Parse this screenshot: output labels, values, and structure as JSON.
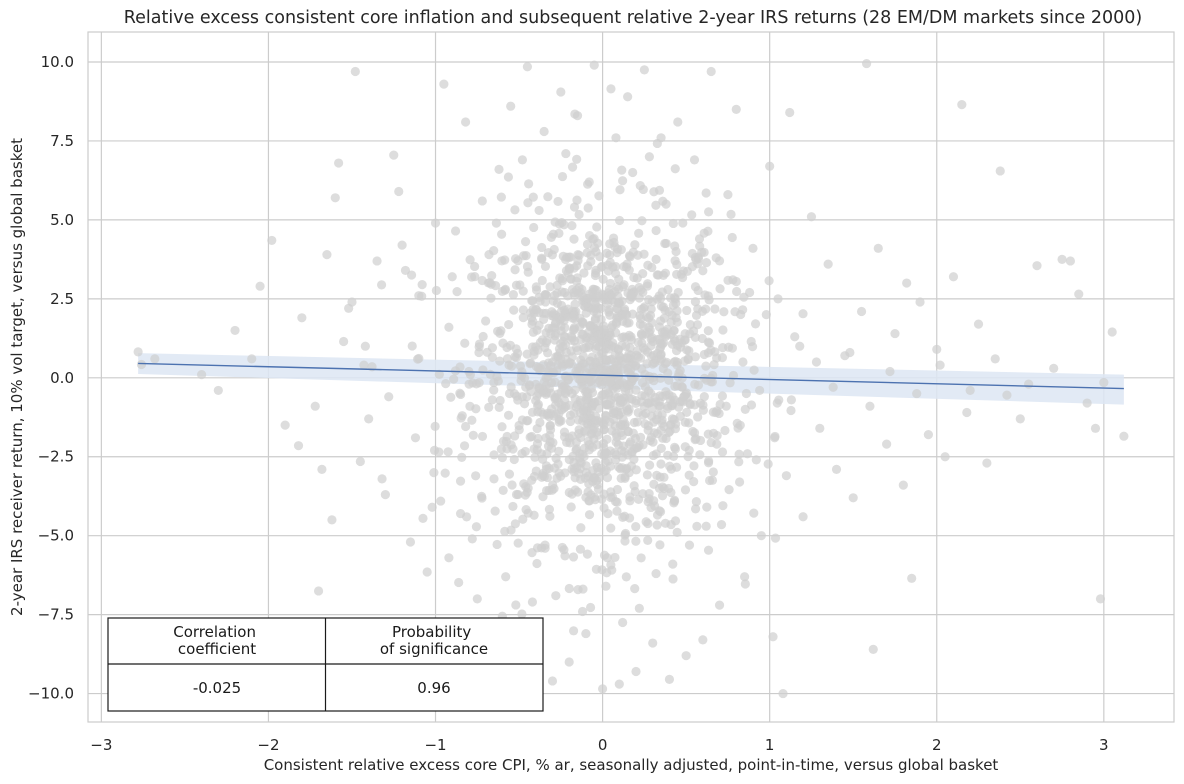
{
  "chart_data": {
    "type": "scatter",
    "title": "Relative excess consistent core inflation and subsequent relative 2-year IRS returns (28 EM/DM markets since 2000)",
    "xlabel": "Consistent relative excess core CPI, % ar, seasonally adjusted, point-in-time, versus global basket",
    "ylabel": "2-year IRS receiver return, 10% vol target, versus global basket",
    "xlim": [
      -3.08,
      3.42
    ],
    "ylim": [
      -10.9,
      10.95
    ],
    "x_ticks": [
      -3,
      -2,
      -1,
      0,
      1,
      2,
      3
    ],
    "x_tick_labels": [
      "−3",
      "−2",
      "−1",
      "0",
      "1",
      "2",
      "3"
    ],
    "y_ticks": [
      -10,
      -7.5,
      -5,
      -2.5,
      0,
      2.5,
      5,
      7.5,
      10
    ],
    "y_tick_labels": [
      "−10.0",
      "−7.5",
      "−5.0",
      "−2.5",
      "0.0",
      "2.5",
      "5.0",
      "7.5",
      "10.0"
    ],
    "grid": true,
    "point_color": "#cfcfcf",
    "line_color": "#4c72b0",
    "band_color": "#dde6f3",
    "regression": {
      "x_range": [
        -2.78,
        3.12
      ],
      "intercept": 0.08,
      "slope": -0.135,
      "band_y_low": [
        0.12,
        -0.85
      ],
      "band_y_high": [
        0.78,
        0.1
      ]
    },
    "points": [
      [
        -2.78,
        0.82
      ],
      [
        -2.76,
        0.42
      ],
      [
        -2.68,
        0.6
      ],
      [
        -2.2,
        1.5
      ],
      [
        -2.05,
        2.9
      ],
      [
        -1.98,
        4.35
      ],
      [
        -1.82,
        -2.15
      ],
      [
        -1.7,
        -6.75
      ],
      [
        -1.65,
        3.9
      ],
      [
        -1.62,
        -4.5
      ],
      [
        -1.6,
        5.7
      ],
      [
        -1.58,
        6.8
      ],
      [
        -1.55,
        1.15
      ],
      [
        -1.5,
        2.4
      ],
      [
        -1.48,
        9.7
      ],
      [
        -1.42,
        1.0
      ],
      [
        -1.4,
        -1.3
      ],
      [
        -1.35,
        3.7
      ],
      [
        -1.3,
        -3.7
      ],
      [
        -1.25,
        7.05
      ],
      [
        -1.2,
        4.2
      ],
      [
        -1.15,
        -5.2
      ],
      [
        -1.1,
        2.6
      ],
      [
        -1.05,
        -6.15
      ],
      [
        -1.0,
        4.9
      ],
      [
        -0.95,
        9.3
      ],
      [
        -0.92,
        -5.7
      ],
      [
        -0.9,
        3.2
      ],
      [
        -0.85,
        -4.3
      ],
      [
        -0.82,
        8.1
      ],
      [
        -0.8,
        0.2
      ],
      [
        -0.75,
        -7.0
      ],
      [
        -0.72,
        5.6
      ],
      [
        -0.7,
        1.8
      ],
      [
        -0.65,
        -3.2
      ],
      [
        -0.62,
        6.6
      ],
      [
        -0.6,
        -7.55
      ],
      [
        -0.55,
        8.6
      ],
      [
        -0.52,
        -8.7
      ],
      [
        -0.5,
        -9.2
      ],
      [
        -0.45,
        9.85
      ],
      [
        -0.4,
        -9.4
      ],
      [
        -0.35,
        7.8
      ],
      [
        -0.3,
        -9.6
      ],
      [
        -0.25,
        9.05
      ],
      [
        -0.2,
        -9.0
      ],
      [
        -0.15,
        8.3
      ],
      [
        -0.1,
        -8.1
      ],
      [
        -0.05,
        9.9
      ],
      [
        0.0,
        -9.85
      ],
      [
        0.05,
        9.15
      ],
      [
        0.1,
        -9.7
      ],
      [
        0.15,
        8.9
      ],
      [
        0.2,
        -9.3
      ],
      [
        0.25,
        9.75
      ],
      [
        0.3,
        -8.4
      ],
      [
        0.35,
        7.6
      ],
      [
        0.4,
        -9.55
      ],
      [
        0.45,
        8.1
      ],
      [
        0.5,
        -8.8
      ],
      [
        0.55,
        6.9
      ],
      [
        0.6,
        -8.3
      ],
      [
        0.65,
        9.7
      ],
      [
        0.7,
        -7.2
      ],
      [
        0.75,
        5.8
      ],
      [
        0.8,
        8.5
      ],
      [
        0.85,
        -6.3
      ],
      [
        0.9,
        4.1
      ],
      [
        0.95,
        -5.0
      ],
      [
        1.0,
        6.7
      ],
      [
        1.02,
        -8.2
      ],
      [
        1.05,
        2.5
      ],
      [
        1.08,
        -10.0
      ],
      [
        1.1,
        -3.1
      ],
      [
        1.12,
        8.4
      ],
      [
        1.15,
        1.3
      ],
      [
        1.2,
        -4.4
      ],
      [
        1.25,
        5.1
      ],
      [
        1.3,
        -1.6
      ],
      [
        1.35,
        3.6
      ],
      [
        1.4,
        -2.9
      ],
      [
        1.45,
        0.7
      ],
      [
        1.5,
        -3.8
      ],
      [
        1.55,
        2.1
      ],
      [
        1.58,
        9.95
      ],
      [
        1.62,
        -8.6
      ],
      [
        1.65,
        4.1
      ],
      [
        1.7,
        -2.1
      ],
      [
        1.75,
        1.4
      ],
      [
        1.8,
        -3.4
      ],
      [
        1.82,
        3.0
      ],
      [
        1.85,
        -6.35
      ],
      [
        1.9,
        2.4
      ],
      [
        1.95,
        -1.8
      ],
      [
        2.0,
        0.9
      ],
      [
        2.05,
        -2.5
      ],
      [
        2.1,
        3.2
      ],
      [
        2.15,
        8.65
      ],
      [
        2.2,
        -0.4
      ],
      [
        2.25,
        1.7
      ],
      [
        2.3,
        -2.7
      ],
      [
        2.38,
        6.55
      ],
      [
        2.42,
        -0.55
      ],
      [
        2.5,
        -1.3
      ],
      [
        2.6,
        3.55
      ],
      [
        2.75,
        3.75
      ],
      [
        2.8,
        3.7
      ],
      [
        2.85,
        2.65
      ],
      [
        2.95,
        -1.6
      ],
      [
        2.98,
        -7.0
      ],
      [
        3.0,
        -0.15
      ],
      [
        3.05,
        1.45
      ],
      [
        3.12,
        -1.85
      ],
      [
        -1.72,
        -0.9
      ],
      [
        -1.45,
        -2.65
      ],
      [
        -1.38,
        0.35
      ],
      [
        -1.28,
        -0.6
      ],
      [
        -1.22,
        5.9
      ],
      [
        -1.12,
        -1.9
      ],
      [
        -1.08,
        2.95
      ],
      [
        -0.98,
        -2.35
      ],
      [
        -0.88,
        4.65
      ],
      [
        -0.78,
        -5.1
      ],
      [
        -0.68,
        3.9
      ],
      [
        -0.58,
        -6.3
      ],
      [
        -0.48,
        6.9
      ],
      [
        -0.42,
        -7.1
      ],
      [
        -0.38,
        5.3
      ],
      [
        -0.28,
        -6.9
      ],
      [
        -0.22,
        7.1
      ],
      [
        -0.12,
        -7.4
      ],
      [
        -0.08,
        6.2
      ],
      [
        0.02,
        -6.6
      ],
      [
        0.08,
        7.6
      ],
      [
        0.12,
        -7.75
      ],
      [
        0.18,
        6.5
      ],
      [
        0.22,
        -7.3
      ],
      [
        0.28,
        7.0
      ],
      [
        0.32,
        -6.2
      ],
      [
        0.38,
        5.5
      ],
      [
        0.42,
        -5.9
      ],
      [
        0.48,
        4.9
      ],
      [
        0.52,
        -5.3
      ],
      [
        0.58,
        4.4
      ],
      [
        0.62,
        -4.7
      ],
      [
        0.68,
        3.8
      ],
      [
        0.72,
        -4.05
      ],
      [
        0.78,
        3.1
      ],
      [
        0.82,
        -3.3
      ],
      [
        0.88,
        2.7
      ],
      [
        0.92,
        -2.6
      ],
      [
        0.98,
        2.0
      ],
      [
        1.03,
        -1.9
      ],
      [
        1.13,
        -0.7
      ],
      [
        1.18,
        1.0
      ],
      [
        1.28,
        0.5
      ],
      [
        1.38,
        -0.3
      ],
      [
        1.48,
        0.8
      ],
      [
        1.6,
        -0.9
      ],
      [
        1.72,
        0.2
      ],
      [
        1.88,
        -0.5
      ],
      [
        2.02,
        0.4
      ],
      [
        2.18,
        -1.1
      ],
      [
        2.35,
        0.6
      ],
      [
        2.55,
        -0.2
      ],
      [
        2.7,
        0.3
      ],
      [
        2.9,
        -0.8
      ],
      [
        -2.4,
        0.1
      ],
      [
        -2.3,
        -0.4
      ],
      [
        -2.1,
        0.6
      ],
      [
        -1.9,
        -1.5
      ],
      [
        -1.8,
        1.9
      ],
      [
        -1.68,
        -2.9
      ],
      [
        -1.52,
        2.2
      ],
      [
        -1.32,
        -3.2
      ],
      [
        -1.18,
        3.4
      ],
      [
        -1.02,
        -4.1
      ],
      [
        -0.92,
        1.6
      ],
      [
        -0.84,
        -1.2
      ],
      [
        -0.74,
        0.8
      ],
      [
        -0.66,
        -0.7
      ],
      [
        -0.56,
        0.4
      ],
      [
        -0.46,
        -0.3
      ],
      [
        -0.36,
        1.2
      ],
      [
        -0.26,
        -1.4
      ],
      [
        -0.16,
        2.1
      ],
      [
        -0.06,
        -2.2
      ],
      [
        0.04,
        2.8
      ],
      [
        0.14,
        -2.9
      ],
      [
        0.24,
        3.3
      ],
      [
        0.34,
        -3.5
      ],
      [
        0.44,
        1.9
      ],
      [
        0.54,
        -1.7
      ],
      [
        0.64,
        1.1
      ],
      [
        0.74,
        -0.9
      ],
      [
        0.84,
        0.5
      ],
      [
        0.94,
        -0.4
      ]
    ],
    "stats_table": {
      "headers": [
        "Correlation\ncoefficient",
        "Probability\nof significance"
      ],
      "values": [
        "-0.025",
        "0.96"
      ]
    }
  }
}
